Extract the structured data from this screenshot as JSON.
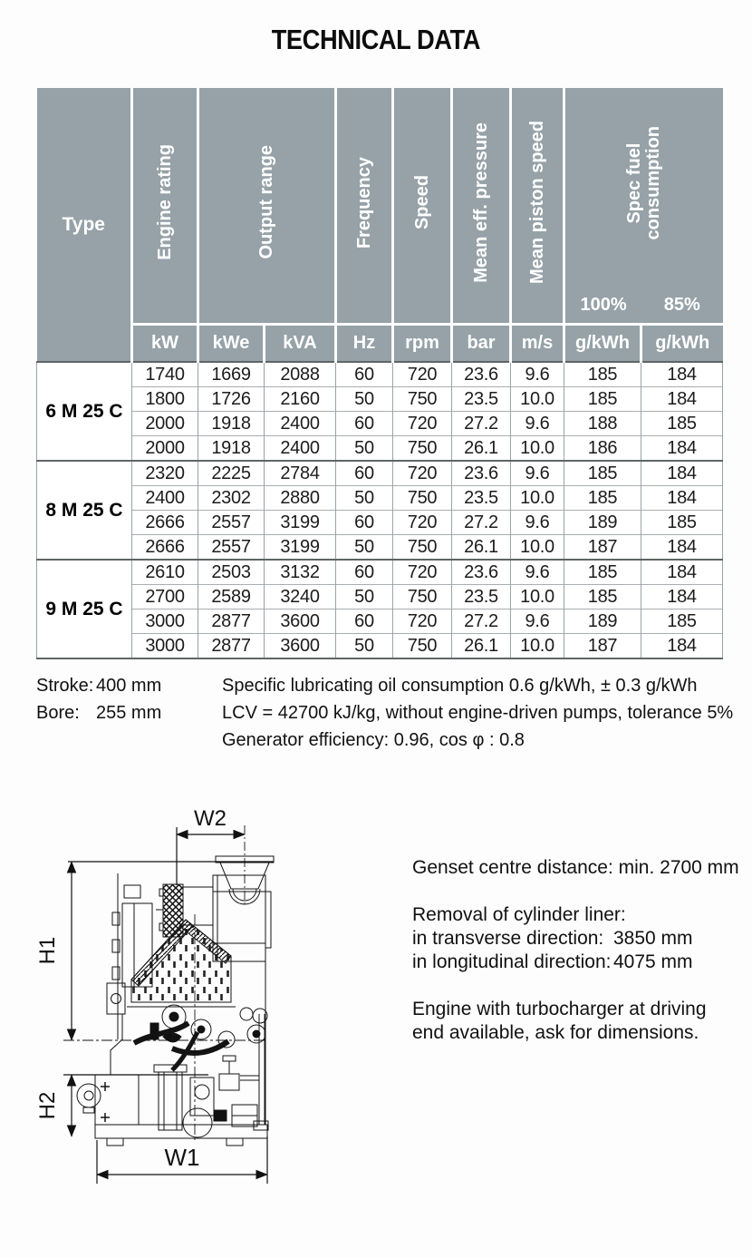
{
  "title": "TECHNICAL DATA",
  "table": {
    "type_header": "Type",
    "col_headers": {
      "engine_rating": "Engine rating",
      "output_range": "Output range",
      "frequency": "Frequency",
      "speed": "Speed",
      "mean_eff_pressure": "Mean eff. pressure",
      "mean_piston_speed": "Mean piston speed",
      "spec_fuel_line1": "Spec fuel",
      "spec_fuel_line2": "consumption",
      "load_100": "100%",
      "load_85": "85%"
    },
    "units": [
      "kW",
      "kWe",
      "kVA",
      "Hz",
      "rpm",
      "bar",
      "m/s",
      "g/kWh",
      "g/kWh"
    ],
    "groups": [
      {
        "type": "6 M 25 C",
        "rows": [
          [
            "1740",
            "1669",
            "2088",
            "60",
            "720",
            "23.6",
            "9.6",
            "185",
            "184"
          ],
          [
            "1800",
            "1726",
            "2160",
            "50",
            "750",
            "23.5",
            "10.0",
            "185",
            "184"
          ],
          [
            "2000",
            "1918",
            "2400",
            "60",
            "720",
            "27.2",
            "9.6",
            "188",
            "185"
          ],
          [
            "2000",
            "1918",
            "2400",
            "50",
            "750",
            "26.1",
            "10.0",
            "186",
            "184"
          ]
        ]
      },
      {
        "type": "8 M 25 C",
        "rows": [
          [
            "2320",
            "2225",
            "2784",
            "60",
            "720",
            "23.6",
            "9.6",
            "185",
            "184"
          ],
          [
            "2400",
            "2302",
            "2880",
            "50",
            "750",
            "23.5",
            "10.0",
            "185",
            "184"
          ],
          [
            "2666",
            "2557",
            "3199",
            "60",
            "720",
            "27.2",
            "9.6",
            "189",
            "185"
          ],
          [
            "2666",
            "2557",
            "3199",
            "50",
            "750",
            "26.1",
            "10.0",
            "187",
            "184"
          ]
        ]
      },
      {
        "type": "9 M 25 C",
        "rows": [
          [
            "2610",
            "2503",
            "3132",
            "60",
            "720",
            "23.6",
            "9.6",
            "185",
            "184"
          ],
          [
            "2700",
            "2589",
            "3240",
            "50",
            "750",
            "23.5",
            "10.0",
            "185",
            "184"
          ],
          [
            "3000",
            "2877",
            "3600",
            "60",
            "720",
            "27.2",
            "9.6",
            "189",
            "185"
          ],
          [
            "3000",
            "2877",
            "3600",
            "50",
            "750",
            "26.1",
            "10.0",
            "187",
            "184"
          ]
        ]
      }
    ]
  },
  "notes": {
    "stroke_label": "Stroke:",
    "stroke_value": "400 mm",
    "bore_label": "Bore:",
    "bore_value": "255 mm",
    "line1": "Specific lubricating oil consumption 0.6 g/kWh, ± 0.3 g/kWh",
    "line2": "LCV = 42700 kJ/kg, without engine-driven pumps, tolerance 5%",
    "line3": "Generator efficiency: 0.96, cos φ : 0.8"
  },
  "drawing": {
    "dim_w2": "W2",
    "dim_h1": "H1",
    "dim_h2": "H2",
    "dim_w1": "W1"
  },
  "info": {
    "genset": "Genset centre distance: min. 2700 mm",
    "removal_title": "Removal of cylinder liner:",
    "transverse_label": "in transverse direction:",
    "transverse_value": "3850 mm",
    "longitudinal_label": "in longitudinal direction:",
    "longitudinal_value": "4075 mm",
    "turbo_line1": "Engine with turbocharger at driving",
    "turbo_line2": "end available, ask for dimensions."
  },
  "colors": {
    "header_bg": "#96a2a8",
    "grid_dark": "#5f6567",
    "grid_light": "#9aa3a7"
  }
}
